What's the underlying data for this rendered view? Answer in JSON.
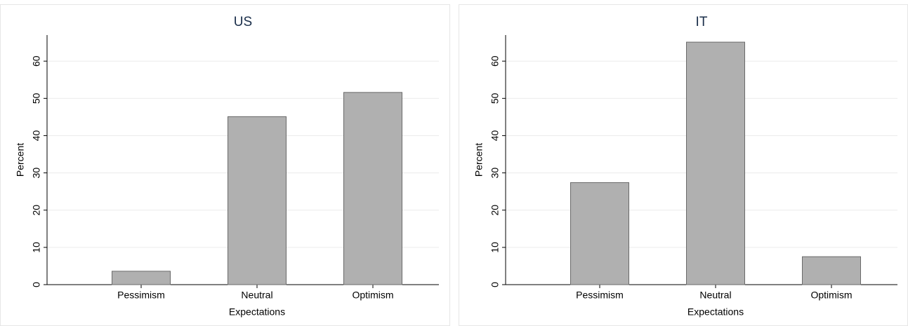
{
  "chart_data": [
    {
      "type": "bar",
      "title": "US",
      "x_label": "Expectations",
      "y_label": "Percent",
      "categories": [
        "Pessimism",
        "Neutral",
        "Optimism"
      ],
      "values": [
        3.6,
        45.1,
        51.6
      ],
      "color": "#b0b0b0",
      "ylim": [
        0,
        67
      ],
      "yticks": [
        0,
        10,
        20,
        30,
        40,
        50,
        60
      ],
      "grid": true
    },
    {
      "type": "bar",
      "title": "IT",
      "x_label": "Expectations",
      "y_label": "Percent",
      "categories": [
        "Pessimism",
        "Neutral",
        "Optimism"
      ],
      "values": [
        27.4,
        65.1,
        7.5
      ],
      "color": "#b0b0b0",
      "ylim": [
        0,
        67
      ],
      "yticks": [
        0,
        10,
        20,
        30,
        40,
        50,
        60
      ],
      "grid": true
    }
  ]
}
